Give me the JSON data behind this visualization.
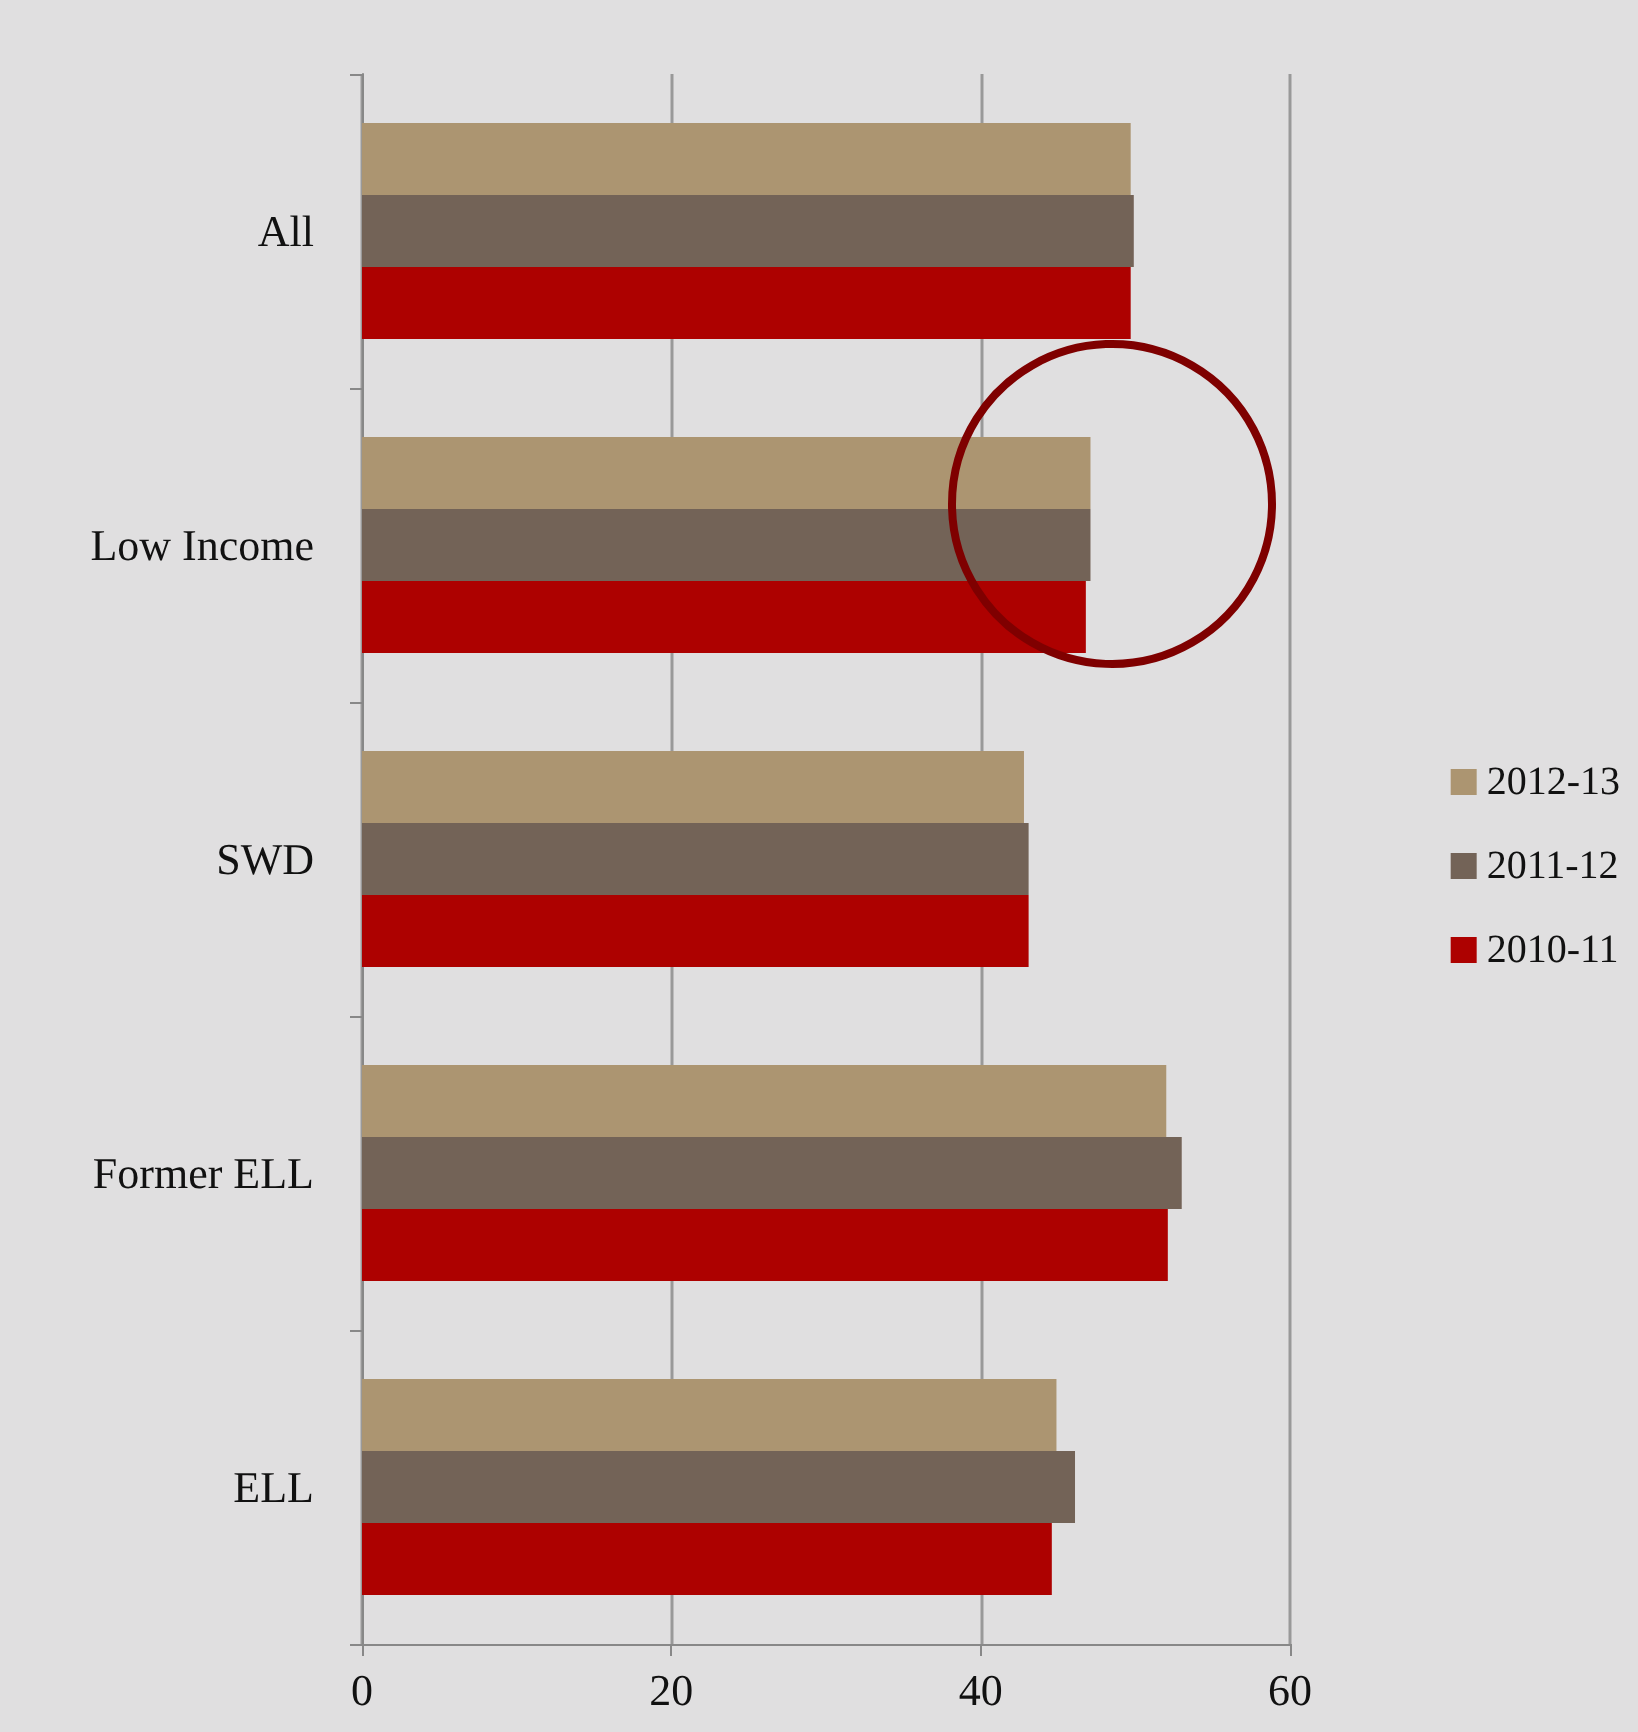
{
  "chart_data": {
    "type": "bar",
    "orientation": "horizontal",
    "categories": [
      "All",
      "Low Income",
      "SWD",
      "Former ELL",
      "ELL"
    ],
    "series": [
      {
        "name": "2012-13",
        "color": "#ac9571",
        "values": [
          49.7,
          47.1,
          42.8,
          52.0,
          44.9
        ]
      },
      {
        "name": "2011-12",
        "color": "#736357",
        "values": [
          49.9,
          47.1,
          43.1,
          53.0,
          46.1
        ]
      },
      {
        "name": "2010-11",
        "color": "#ad0100",
        "values": [
          49.7,
          46.8,
          43.1,
          52.1,
          44.6
        ]
      }
    ],
    "xlim": [
      0,
      60
    ],
    "xticks": [
      0,
      20,
      40,
      60
    ],
    "grid": "x",
    "legend": "right"
  }
}
